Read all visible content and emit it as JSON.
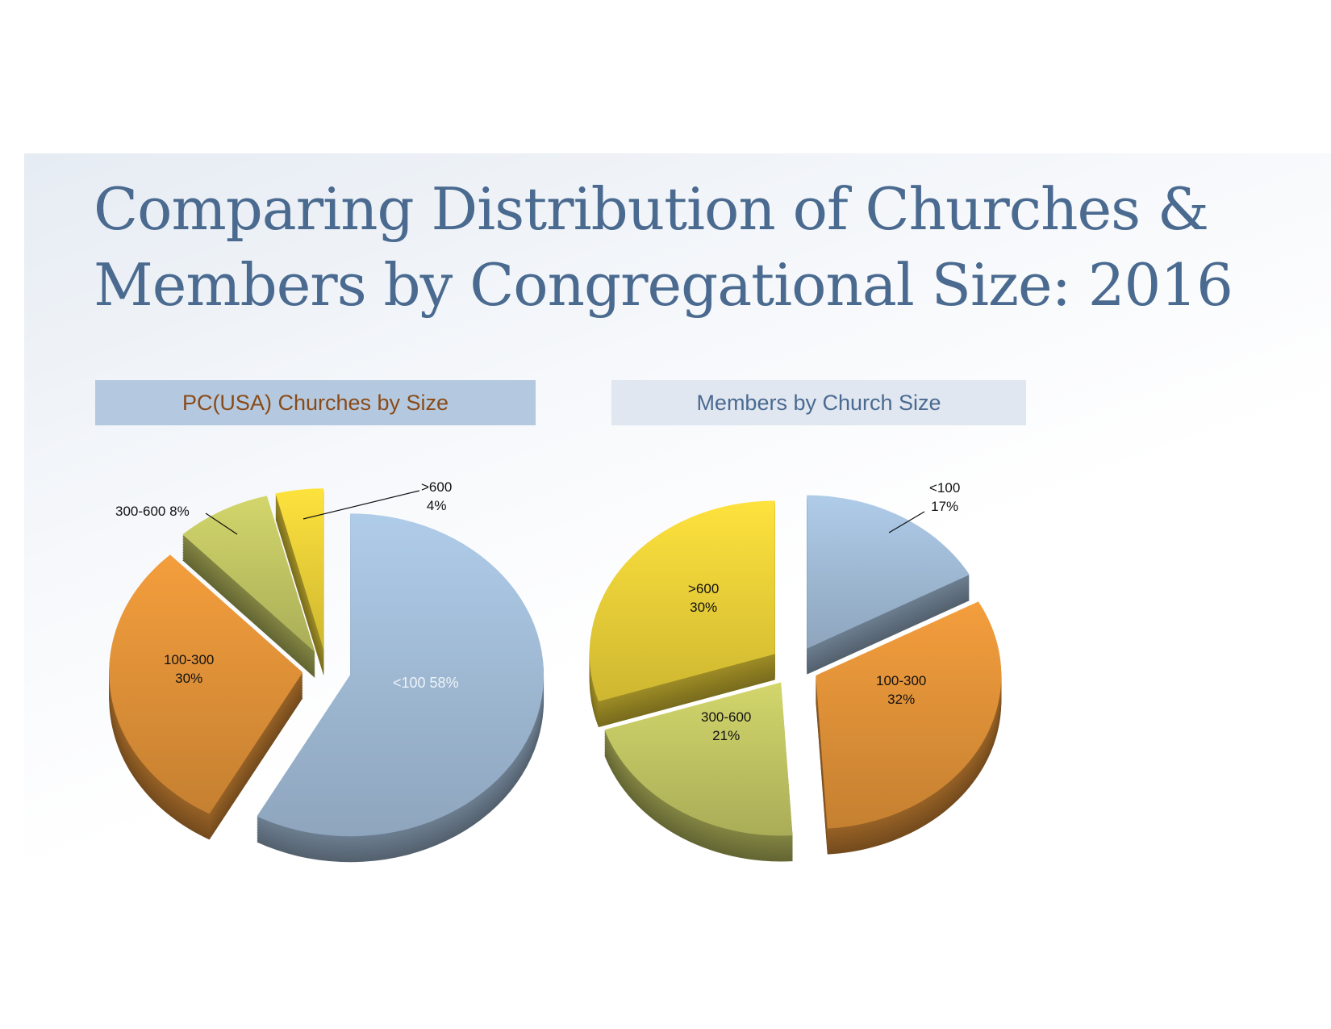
{
  "title": "Comparing Distribution of Churches & Members by Congregational Size: 2016",
  "colors": {
    "<100": "#a7c2de",
    "100-300": "#e8963a",
    "300-600": "#c8cc66",
    ">600": "#f2d73a"
  },
  "chart_data": [
    {
      "type": "pie",
      "title": "PC(USA) Churches by Size",
      "style": "3d-exploded",
      "slices": [
        {
          "label": "<100",
          "value": 58
        },
        {
          "label": "100-300",
          "value": 30
        },
        {
          "label": "300-600",
          "value": 8
        },
        {
          "label": ">600",
          "value": 4
        }
      ],
      "data_labels": [
        "<100 58%",
        "100-300",
        "30%",
        "300-600 8%",
        ">600",
        "4%"
      ]
    },
    {
      "type": "pie",
      "title": "Members by Church Size",
      "style": "3d-exploded",
      "slices": [
        {
          "label": "<100",
          "value": 17
        },
        {
          "label": "100-300",
          "value": 32
        },
        {
          "label": "300-600",
          "value": 21
        },
        {
          "label": ">600",
          "value": 30
        }
      ],
      "data_labels": [
        "<100",
        "17%",
        "100-300",
        "32%",
        "300-600",
        "21%",
        ">600",
        "30%"
      ]
    }
  ]
}
